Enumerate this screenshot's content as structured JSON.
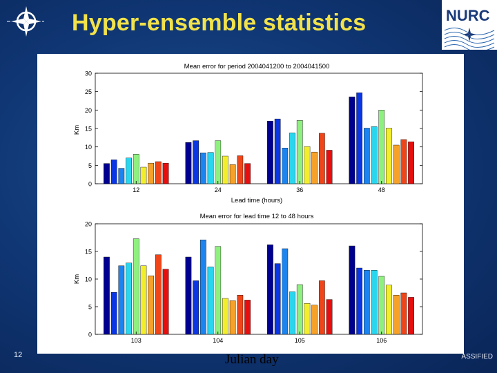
{
  "slide": {
    "title": "Hyper-ensemble statistics",
    "page_number": "12",
    "classification": "ASSIFIED",
    "caption": "Julian day",
    "nurc_logo_text": "NURC"
  },
  "colors": {
    "palette": [
      "#00008f",
      "#0030e8",
      "#1a7ef5",
      "#25d2f0",
      "#85f090",
      "#f5ec2a",
      "#f7a22a",
      "#f22a12",
      "#ec0b0b",
      "#7b0000"
    ],
    "bar_colors": [
      "#00008f",
      "#0a36e6",
      "#1c84f0",
      "#2ad6ee",
      "#8ef07e",
      "#f3ee2a",
      "#f5a12a",
      "#f04518",
      "#e90e0e",
      "#820000"
    ]
  },
  "chart_data": [
    {
      "type": "bar",
      "title": "Mean error for period 2004041200 to 2004041500",
      "xlabel": "Lead time (hours)",
      "ylabel": "Km",
      "ylim": [
        0,
        30
      ],
      "yticks": [
        0,
        5,
        10,
        15,
        20,
        25,
        30
      ],
      "categories": [
        "12",
        "24",
        "36",
        "48"
      ],
      "groups": [
        [
          5.5,
          6.5,
          4.2,
          7.0,
          8.0,
          4.5,
          5.6,
          6.0,
          5.6
        ],
        [
          11.2,
          11.7,
          8.4,
          8.5,
          11.7,
          7.5,
          5.2,
          7.6,
          5.5
        ],
        [
          17.0,
          17.6,
          9.7,
          13.8,
          17.2,
          10.1,
          8.6,
          13.7,
          9.1
        ],
        [
          23.6,
          24.7,
          15.1,
          15.5,
          20.0,
          15.1,
          10.5,
          12.0,
          11.4
        ]
      ]
    },
    {
      "type": "bar",
      "title": "Mean error for lead time 12 to 48 hours",
      "xlabel": "",
      "ylabel": "Km",
      "ylim": [
        0,
        20
      ],
      "yticks": [
        0,
        5,
        10,
        15,
        20
      ],
      "categories": [
        "103",
        "104",
        "105",
        "106"
      ],
      "groups": [
        [
          14.0,
          7.6,
          12.4,
          12.9,
          17.3,
          12.4,
          10.6,
          14.4,
          11.8
        ],
        [
          14.0,
          9.7,
          17.1,
          12.2,
          15.9,
          6.5,
          6.1,
          7.1,
          6.2
        ],
        [
          16.2,
          12.8,
          15.5,
          7.7,
          9.0,
          5.6,
          5.3,
          9.7,
          6.3
        ],
        [
          16.0,
          12.0,
          11.6,
          11.6,
          10.5,
          8.9,
          7.1,
          7.5,
          6.7
        ]
      ]
    }
  ]
}
